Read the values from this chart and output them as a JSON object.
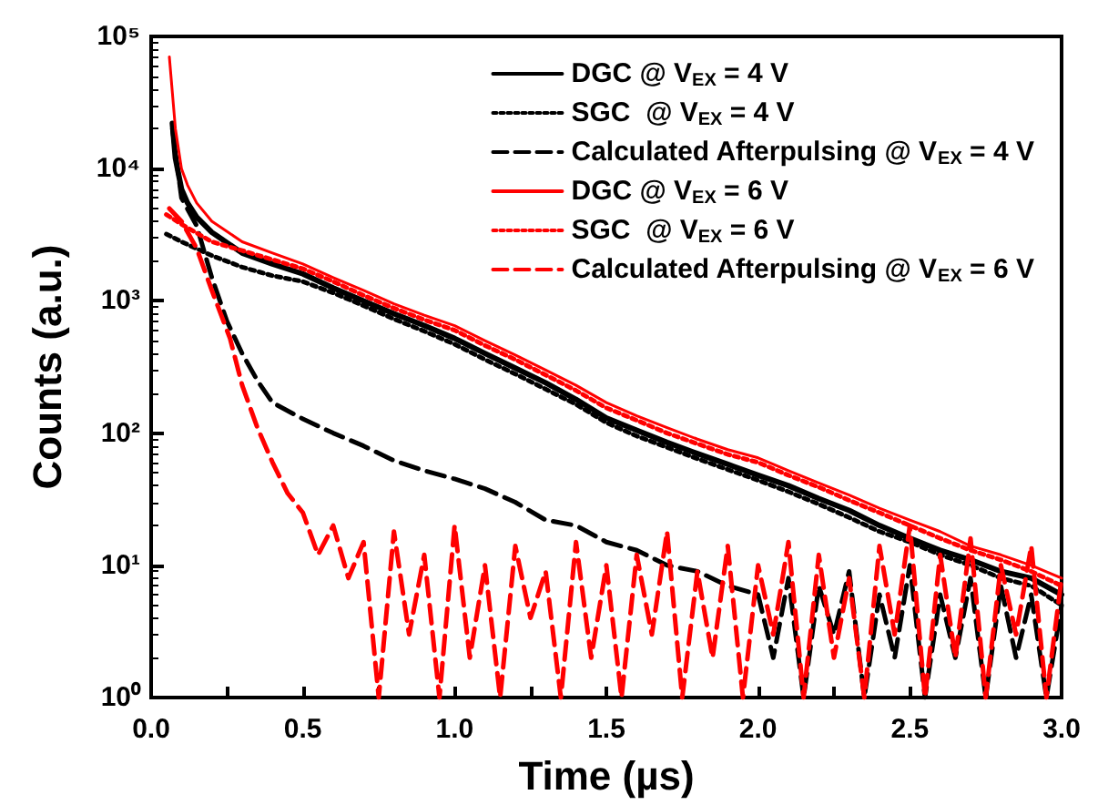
{
  "chart_data": {
    "type": "line",
    "xlabel": "Time (µs)",
    "ylabel": "Counts (a.u.)",
    "log": "y",
    "xlim": [
      0,
      3
    ],
    "ylim": [
      1,
      100000
    ],
    "xticks": [
      {
        "value": 0,
        "label": "0.0"
      },
      {
        "value": 0.25,
        "label": null
      },
      {
        "value": 0.5,
        "label": "0.5"
      },
      {
        "value": 0.75,
        "label": null
      },
      {
        "value": 1,
        "label": "1.0"
      },
      {
        "value": 1.25,
        "label": null
      },
      {
        "value": 1.5,
        "label": "1.5"
      },
      {
        "value": 1.75,
        "label": null
      },
      {
        "value": 2,
        "label": "2.0"
      },
      {
        "value": 2.25,
        "label": null
      },
      {
        "value": 2.5,
        "label": "2.5"
      },
      {
        "value": 2.75,
        "label": null
      },
      {
        "value": 3,
        "label": "3.0"
      }
    ],
    "yticks": [
      {
        "value": 1,
        "label": "10⁰"
      },
      {
        "value": 10,
        "label": "10¹"
      },
      {
        "value": 100,
        "label": "10²"
      },
      {
        "value": 1000,
        "label": "10³"
      },
      {
        "value": 10000,
        "label": "10⁴"
      },
      {
        "value": 100000,
        "label": "10⁵"
      }
    ],
    "grid": false,
    "legend": "top right",
    "marker": "none",
    "series": [
      {
        "name": "DGC @ V$_{EX}$ = 4 V",
        "color": "#000000",
        "line_style": "solid",
        "x": [
          0.07,
          0.08,
          0.1,
          0.12,
          0.15,
          0.2,
          0.3,
          0.4,
          0.5,
          0.6,
          0.7,
          0.8,
          0.9,
          1.0,
          1.1,
          1.2,
          1.3,
          1.4,
          1.5,
          1.6,
          1.7,
          1.8,
          1.9,
          2.0,
          2.1,
          2.2,
          2.3,
          2.4,
          2.5,
          2.6,
          2.7,
          2.8,
          2.9,
          3.0
        ],
        "values": [
          22000,
          12000,
          7000,
          5500,
          4300,
          3300,
          2300,
          1900,
          1600,
          1250,
          1000,
          800,
          650,
          520,
          400,
          310,
          240,
          180,
          130,
          105,
          85,
          70,
          58,
          48,
          40,
          32,
          26,
          20,
          16,
          13,
          11,
          9,
          8,
          6
        ]
      },
      {
        "name": "SGC  @ V$_{EX}$ = 4 V",
        "color": "#000000",
        "line_style": "dotted",
        "x": [
          0.05,
          0.1,
          0.2,
          0.3,
          0.4,
          0.5,
          0.6,
          0.7,
          0.8,
          0.9,
          1.0,
          1.1,
          1.2,
          1.3,
          1.4,
          1.5,
          1.6,
          1.7,
          1.8,
          1.9,
          2.0,
          2.1,
          2.2,
          2.3,
          2.4,
          2.5,
          2.6,
          2.7,
          2.8,
          2.9,
          3.0
        ],
        "values": [
          3200,
          2800,
          2200,
          1800,
          1550,
          1400,
          1150,
          920,
          730,
          590,
          470,
          360,
          280,
          215,
          165,
          120,
          95,
          78,
          64,
          53,
          44,
          36,
          29,
          23,
          18,
          15,
          12,
          10,
          8,
          7,
          5
        ]
      },
      {
        "name": "Calculated Afterpulsing @ V$_{EX}$ = 4 V",
        "color": "#000000",
        "line_style": "dashed",
        "x": [
          0.07,
          0.1,
          0.15,
          0.2,
          0.25,
          0.3,
          0.35,
          0.4,
          0.5,
          0.6,
          0.7,
          0.8,
          0.9,
          1.0,
          1.1,
          1.2,
          1.3,
          1.4,
          1.5,
          1.6,
          1.7,
          1.8,
          1.9,
          2.0,
          2.05,
          2.1,
          2.15,
          2.2,
          2.25,
          2.3,
          2.35,
          2.4,
          2.45,
          2.5,
          2.55,
          2.6,
          2.65,
          2.7,
          2.75,
          2.8,
          2.85,
          2.9,
          2.95,
          3.0
        ],
        "values": [
          20000,
          6000,
          3700,
          1500,
          700,
          400,
          250,
          170,
          128,
          100,
          80,
          62,
          52,
          45,
          38,
          30,
          22,
          20,
          15,
          13,
          10,
          9,
          7,
          6,
          2,
          8,
          1,
          7,
          3,
          9,
          1,
          6,
          2,
          10,
          1,
          6,
          2,
          8,
          1,
          7,
          2,
          6,
          1,
          5
        ]
      },
      {
        "name": "DGC @ V$_{EX}$ = 6 V",
        "color": "#ff0000",
        "line_style": "solid",
        "x": [
          0.06,
          0.08,
          0.1,
          0.12,
          0.15,
          0.2,
          0.3,
          0.4,
          0.5,
          0.6,
          0.7,
          0.8,
          0.9,
          1.0,
          1.1,
          1.2,
          1.3,
          1.4,
          1.5,
          1.6,
          1.7,
          1.8,
          1.9,
          2.0,
          2.1,
          2.2,
          2.3,
          2.4,
          2.5,
          2.6,
          2.7,
          2.8,
          2.9,
          3.0
        ],
        "values": [
          70000,
          20000,
          10000,
          7500,
          5500,
          4000,
          2800,
          2300,
          1900,
          1500,
          1200,
          950,
          780,
          650,
          500,
          390,
          300,
          230,
          170,
          135,
          110,
          90,
          75,
          65,
          52,
          42,
          34,
          27,
          22,
          18,
          14,
          12,
          10,
          8
        ]
      },
      {
        "name": "SGC  @ V$_{EX}$ = 6 V",
        "color": "#ff0000",
        "line_style": "dotted",
        "x": [
          0.05,
          0.1,
          0.2,
          0.3,
          0.4,
          0.5,
          0.6,
          0.7,
          0.8,
          0.9,
          1.0,
          1.1,
          1.2,
          1.3,
          1.4,
          1.5,
          1.6,
          1.7,
          1.8,
          1.9,
          2.0,
          2.1,
          2.2,
          2.3,
          2.4,
          2.5,
          2.6,
          2.7,
          2.8,
          2.9,
          3.0
        ],
        "values": [
          4500,
          3800,
          2800,
          2400,
          2050,
          1750,
          1400,
          1100,
          880,
          720,
          600,
          460,
          360,
          275,
          210,
          155,
          125,
          100,
          83,
          69,
          60,
          48,
          39,
          31,
          25,
          20,
          16,
          13,
          11,
          9,
          7
        ]
      },
      {
        "name": "Calculated Afterpulsing @ V$_{EX}$ = 6 V",
        "color": "#ff0000",
        "line_style": "dashed",
        "x": [
          0.06,
          0.1,
          0.15,
          0.2,
          0.26,
          0.3,
          0.35,
          0.4,
          0.45,
          0.5,
          0.55,
          0.6,
          0.65,
          0.7,
          0.75,
          0.8,
          0.85,
          0.9,
          0.95,
          1.0,
          1.05,
          1.1,
          1.15,
          1.2,
          1.25,
          1.3,
          1.35,
          1.4,
          1.45,
          1.5,
          1.55,
          1.6,
          1.65,
          1.7,
          1.75,
          1.8,
          1.85,
          1.9,
          1.95,
          2.0,
          2.05,
          2.1,
          2.15,
          2.2,
          2.25,
          2.3,
          2.35,
          2.4,
          2.45,
          2.5,
          2.55,
          2.6,
          2.65,
          2.7,
          2.75,
          2.8,
          2.85,
          2.9,
          2.95,
          3.0
        ],
        "values": [
          5000,
          4000,
          2500,
          1200,
          520,
          230,
          110,
          60,
          35,
          25,
          12,
          20,
          8,
          15,
          1,
          18,
          3,
          12,
          1,
          20,
          2,
          10,
          1,
          14,
          4,
          9,
          1,
          15,
          2,
          10,
          1,
          12,
          3,
          18,
          1,
          9,
          2,
          14,
          1,
          10,
          3,
          15,
          1,
          12,
          2,
          8,
          1,
          14,
          3,
          20,
          1,
          12,
          2,
          16,
          1,
          10,
          3,
          14,
          1,
          8
        ]
      }
    ]
  }
}
